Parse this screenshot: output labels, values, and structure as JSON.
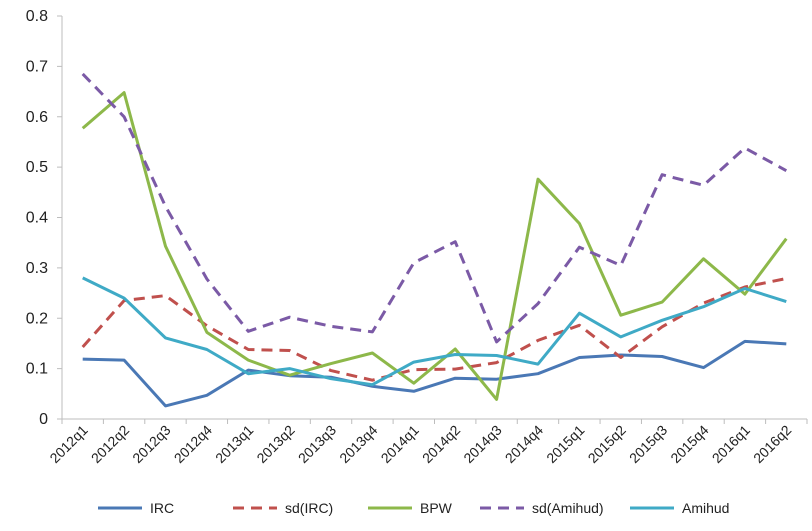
{
  "chart_data": {
    "type": "line",
    "title": "",
    "xlabel": "",
    "ylabel": "",
    "ylim": [
      0,
      0.8
    ],
    "yticks": [
      0,
      0.1,
      0.2,
      0.3,
      0.4,
      0.5,
      0.6,
      0.7,
      0.8
    ],
    "ytick_labels": [
      "0",
      "0.1",
      "0.2",
      "0.3",
      "0.4",
      "0.5",
      "0.6",
      "0.7",
      "0.8"
    ],
    "grid": false,
    "legend_position": "bottom",
    "categories": [
      "2012q1",
      "2012q2",
      "2012q3",
      "2012q4",
      "2013q1",
      "2013q2",
      "2013q3",
      "2013q4",
      "2014q1",
      "2014q2",
      "2014q3",
      "2014q4",
      "2015q1",
      "2015q2",
      "2015q3",
      "2015q4",
      "2016q1",
      "2016q2"
    ],
    "series": [
      {
        "name": "IRC",
        "color": "#4a78b5",
        "dash": "solid",
        "values": [
          0.119,
          0.117,
          0.026,
          0.047,
          0.097,
          0.086,
          0.083,
          0.065,
          0.055,
          0.081,
          0.079,
          0.09,
          0.122,
          0.127,
          0.124,
          0.102,
          0.154,
          0.149
        ]
      },
      {
        "name": "sd(IRC)",
        "color": "#c0504d",
        "dash": "dashed",
        "values": [
          0.143,
          0.235,
          0.245,
          0.185,
          0.138,
          0.136,
          0.096,
          0.077,
          0.098,
          0.099,
          0.112,
          0.156,
          0.186,
          0.122,
          0.183,
          0.23,
          0.262,
          0.279
        ]
      },
      {
        "name": "BPW",
        "color": "#8db84a",
        "dash": "solid",
        "values": [
          0.577,
          0.648,
          0.343,
          0.172,
          0.117,
          0.087,
          0.11,
          0.131,
          0.071,
          0.139,
          0.039,
          0.476,
          0.388,
          0.206,
          0.232,
          0.318,
          0.248,
          0.358
        ]
      },
      {
        "name": "sd(Amihud)",
        "color": "#7b5aa6",
        "dash": "dashed",
        "values": [
          0.685,
          0.6,
          0.422,
          0.278,
          0.174,
          0.202,
          0.184,
          0.173,
          0.31,
          0.352,
          0.153,
          0.229,
          0.341,
          0.305,
          0.485,
          0.464,
          0.538,
          0.493
        ]
      },
      {
        "name": "Amihud",
        "color": "#3faac6",
        "dash": "solid",
        "values": [
          0.28,
          0.24,
          0.161,
          0.138,
          0.09,
          0.1,
          0.08,
          0.068,
          0.113,
          0.128,
          0.126,
          0.109,
          0.21,
          0.163,
          0.196,
          0.223,
          0.259,
          0.233
        ]
      }
    ]
  }
}
